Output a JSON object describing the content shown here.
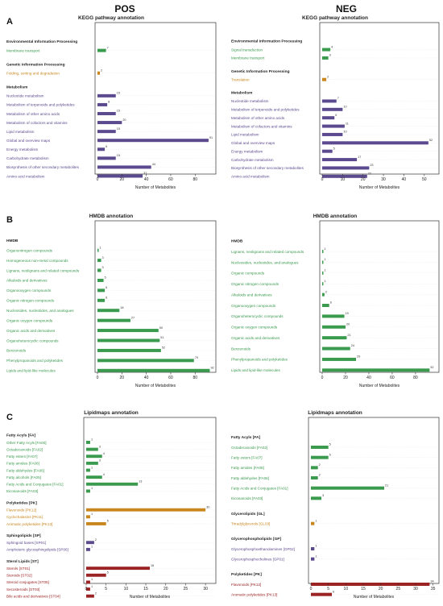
{
  "headers": {
    "left": "POS",
    "right": "NEG"
  },
  "panels": [
    {
      "letter": "A",
      "title": "KEGG pathway annotation"
    },
    {
      "letter": "B",
      "title": "HMDB annotation"
    },
    {
      "letter": "C",
      "title": "Lipidmaps annotation"
    }
  ],
  "colors": {
    "green": "#3a9a4e",
    "orange": "#c8861d",
    "purple": "#5c4a8f",
    "red": "#9b2323",
    "dark": "#222222"
  },
  "chart_data": [
    {
      "id": "A-POS",
      "type": "bar",
      "orientation": "horizontal",
      "title": "KEGG pathway annotation",
      "xlabel": "Number of Metabolites",
      "xlim": [
        0,
        95
      ],
      "xticks": [
        0,
        20,
        40,
        60,
        80
      ],
      "groups": [
        {
          "name": "Environmental Information Processing",
          "color": "green",
          "categories": [
            "Membrane transport"
          ],
          "values": [
            7
          ]
        },
        {
          "name": "Genetic Information Processing",
          "color": "orange",
          "categories": [
            "Folding, sorting and degradation"
          ],
          "values": [
            2
          ]
        },
        {
          "name": "Metabolism",
          "color": "purple",
          "categories": [
            "Nucleotide metabolism",
            "Metabolism of terpenoids and polyketides",
            "Metabolism of other amino acids",
            "Metabolism of cofactors and vitamins",
            "Lipid metabolism",
            "Global and overview maps",
            "Energy metabolism",
            "Carbohydrate metabolism",
            "Biosynthesis of other secondary metabolites",
            "Amino acid metabolism"
          ],
          "values": [
            15,
            8,
            15,
            20,
            15,
            91,
            6,
            15,
            44,
            37
          ]
        }
      ]
    },
    {
      "id": "A-NEG",
      "type": "bar",
      "orientation": "horizontal",
      "title": "KEGG pathway annotation",
      "xlabel": "Number of Metabolites",
      "xlim": [
        0,
        56
      ],
      "xticks": [
        0,
        10,
        20,
        30,
        40,
        50
      ],
      "groups": [
        {
          "name": "Environmental Information Processing",
          "color": "green",
          "categories": [
            "Signal transduction",
            "Membrane transport"
          ],
          "values": [
            4,
            3
          ]
        },
        {
          "name": "Genetic Information Processing",
          "color": "orange",
          "categories": [
            "Translation"
          ],
          "values": [
            2
          ]
        },
        {
          "name": "Metabolism",
          "color": "purple",
          "categories": [
            "Nucleotide metabolism",
            "Metabolism of terpenoids and polyketides",
            "Metabolism of other amino acids",
            "Metabolism of cofactors and vitamins",
            "Lipid metabolism",
            "Global and overview maps",
            "Energy metabolism",
            "Carbohydrate metabolism",
            "Biosynthesis of other secondary metabolites",
            "Amino acid metabolism"
          ],
          "values": [
            7,
            10,
            6,
            11,
            10,
            52,
            5,
            17,
            23,
            22
          ]
        }
      ]
    },
    {
      "id": "B-POS",
      "type": "bar",
      "orientation": "horizontal",
      "title": "HMDB annotation",
      "xlabel": "Number of Metabolites",
      "xlim": [
        0,
        95
      ],
      "xticks": [
        0,
        20,
        40,
        60,
        80
      ],
      "groups": [
        {
          "name": "HMDB",
          "color": "green",
          "categories": [
            "Organonitrogen compounds",
            "Homogeneous non-metal compounds",
            "Lignans, neolignans and related compounds",
            "Alkaloids and derivatives",
            "Organooxygen compounds",
            "Organic nitrogen compounds",
            "Nucleosides, nucleotides, and analogues",
            "Organic oxygen compounds",
            "Organic acids and derivatives",
            "Organoheterocyclic compounds",
            "Benzenoids",
            "Phenylpropanoids and polyketides",
            "Lipids and lipid-like molecules"
          ],
          "values": [
            1,
            3,
            3,
            5,
            6,
            6,
            18,
            27,
            50,
            51,
            52,
            79,
            92
          ]
        }
      ]
    },
    {
      "id": "B-NEG",
      "type": "bar",
      "orientation": "horizontal",
      "title": "HMDB annotation",
      "xlabel": "Number of Metabolites",
      "xlim": [
        0,
        98
      ],
      "xticks": [
        0,
        20,
        40,
        60,
        80
      ],
      "groups": [
        {
          "name": "HMDB",
          "color": "green",
          "categories": [
            "Lignans, neolignans and related compounds",
            "Nucleosides, nucleotides, and analogues",
            "Organic compounds",
            "Organic nitrogen compounds",
            "Alkaloids and derivatives",
            "Organooxygen compounds",
            "Organoheterocyclic compounds",
            "Organic oxygen compounds",
            "Organic acids and derivatives",
            "Benzenoids",
            "Phenylpropanoids and polyketides",
            "Lipids and lipid-like molecules"
          ],
          "values": [
            1,
            1,
            1,
            1,
            2,
            6,
            19,
            20,
            21,
            24,
            29,
            92
          ]
        }
      ]
    },
    {
      "id": "C-POS",
      "type": "bar",
      "orientation": "horizontal",
      "title": "Lipidmaps annotation",
      "xlabel": "Number of Metabolites",
      "xlim": [
        0,
        32
      ],
      "xticks": [
        0,
        5,
        10,
        15,
        20,
        25,
        30
      ],
      "groups": [
        {
          "name": "Fatty Acyls [FA]",
          "color": "green",
          "categories": [
            "Other Fatty Acyls [FA00]",
            "Octadecanoids [FA02]",
            "Fatty esters [FA07]",
            "Fatty amides [FA08]",
            "Fatty aldehydes [FA06]",
            "Fatty alcohols [FA05]",
            "Fatty Acids and Conjugates [FA01]",
            "Eicosanoids [FA03]"
          ],
          "values": [
            1,
            3,
            4,
            3,
            1,
            4,
            13,
            1
          ]
        },
        {
          "name": "Polyketides [PK]",
          "color": "orange",
          "categories": [
            "Flavonoids [PK12]",
            "Cyclochalasins [PK11]",
            "Aromatic polyketides [PK13]"
          ],
          "values": [
            30,
            1,
            5
          ]
        },
        {
          "name": "Sphingolipids [SP]",
          "color": "purple",
          "categories": [
            "Sphingoid bases [SP01]",
            "Amphoteric glycosphingolipids [SP06]"
          ],
          "values": [
            2,
            1
          ]
        },
        {
          "name": "Sterol Lipids [ST]",
          "color": "red",
          "categories": [
            "Sterols [ST01]",
            "Steroids [ST02]",
            "Steroid conjugates [ST05]",
            "Secosteroids [ST03]",
            "Bile acids and derivatives [ST04]"
          ],
          "values": [
            16,
            5,
            1,
            1,
            2
          ]
        }
      ]
    },
    {
      "id": "C-NEG",
      "type": "bar",
      "orientation": "horizontal",
      "title": "Lipidmaps annotation",
      "xlabel": "Number of Metabolites",
      "xlim": [
        0,
        36
      ],
      "xticks": [
        0,
        5,
        10,
        15,
        20,
        25,
        30,
        35
      ],
      "groups": [
        {
          "name": "Fatty Acyls [FA]",
          "color": "green",
          "categories": [
            "Octadecanoids [FA02]",
            "Fatty esters [FA07]",
            "Fatty amides [FA08]",
            "Fatty aldehydes [FA06]",
            "Fatty Acids and Conjugates [FA01]",
            "Eicosanoids [FA03]"
          ],
          "values": [
            5,
            5,
            2,
            2,
            21,
            3
          ]
        },
        {
          "name": "Glycerolipids [GL]",
          "color": "orange",
          "categories": [
            "Triradylglycerols [GL03]"
          ],
          "values": [
            1
          ]
        },
        {
          "name": "Glycerophospholipids [GP]",
          "color": "purple",
          "categories": [
            "Glycerophosphoethanolamines [GP02]",
            "Glycerophosphocholines [GP01]"
          ],
          "values": [
            1,
            1
          ]
        },
        {
          "name": "Polyketides [PK]",
          "color": "red",
          "categories": [
            "Flavonoids [PK12]",
            "Aromatic polyketides [PK13]"
          ],
          "values": [
            34,
            6
          ]
        }
      ]
    }
  ]
}
